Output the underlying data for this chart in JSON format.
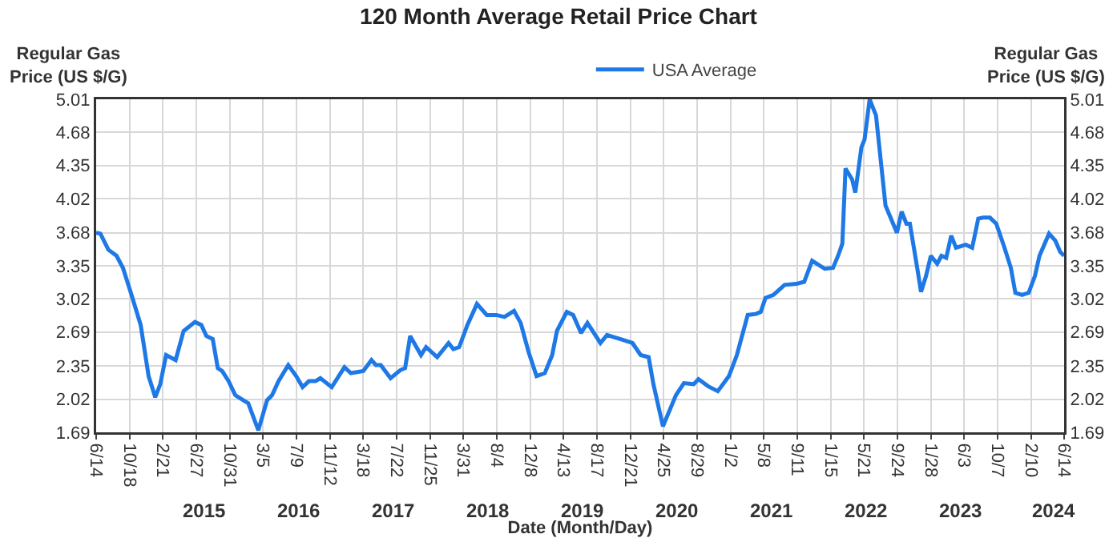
{
  "chart_data": {
    "type": "line",
    "title": "120 Month Average Retail Price Chart",
    "xlabel": "Date (Month/Day)",
    "ylabel": "Regular Gas\nPrice (US $/G)",
    "y2label": "Regular Gas\nPrice (US $/G)",
    "x": [
      "2014-06-14",
      "2014-06-30",
      "2014-07-30",
      "2014-08-30",
      "2014-09-23",
      "2014-10-23",
      "2014-11-29",
      "2014-12-29",
      "2015-01-23",
      "2015-02-11",
      "2015-03-05",
      "2015-04-10",
      "2015-05-10",
      "2015-06-22",
      "2015-07-16",
      "2015-08-04",
      "2015-08-28",
      "2015-09-16",
      "2015-10-03",
      "2015-10-27",
      "2015-11-21",
      "2015-12-21",
      "2016-01-09",
      "2016-02-16",
      "2016-03-20",
      "2016-04-08",
      "2016-05-02",
      "2016-06-08",
      "2016-07-08",
      "2016-08-01",
      "2016-08-25",
      "2016-09-19",
      "2016-10-07",
      "2016-11-19",
      "2017-01-06",
      "2017-01-30",
      "2017-03-18",
      "2017-04-18",
      "2017-05-05",
      "2017-05-23",
      "2017-06-29",
      "2017-08-05",
      "2017-08-23",
      "2017-09-11",
      "2017-10-22",
      "2017-11-10",
      "2017-12-22",
      "2018-02-03",
      "2018-02-21",
      "2018-03-15",
      "2018-04-15",
      "2018-05-21",
      "2018-06-27",
      "2018-08-02",
      "2018-09-02",
      "2018-10-08",
      "2018-11-02",
      "2018-12-02",
      "2019-01-01",
      "2019-02-01",
      "2019-03-01",
      "2019-03-19",
      "2019-04-25",
      "2019-05-19",
      "2019-06-18",
      "2019-07-12",
      "2019-08-30",
      "2019-09-24",
      "2019-11-12",
      "2019-12-29",
      "2020-01-29",
      "2020-02-28",
      "2020-03-17",
      "2020-04-22",
      "2020-06-10",
      "2020-07-10",
      "2020-08-16",
      "2020-09-03",
      "2020-10-09",
      "2020-11-15",
      "2020-12-27",
      "2021-01-26",
      "2021-03-08",
      "2021-04-08",
      "2021-04-26",
      "2021-05-14",
      "2021-06-13",
      "2021-07-25",
      "2021-09-07",
      "2021-10-07",
      "2021-11-06",
      "2021-12-24",
      "2022-01-24",
      "2022-02-12",
      "2022-02-28",
      "2022-03-12",
      "2022-04-06",
      "2022-04-18",
      "2022-05-11",
      "2022-05-23",
      "2022-06-11",
      "2022-07-05",
      "2022-08-10",
      "2022-09-22",
      "2022-10-10",
      "2022-10-28",
      "2022-11-10",
      "2022-12-10",
      "2022-12-22",
      "2023-01-10",
      "2023-01-28",
      "2023-02-21",
      "2023-03-09",
      "2023-03-27",
      "2023-04-15",
      "2023-05-03",
      "2023-06-09",
      "2023-07-03",
      "2023-07-26",
      "2023-08-14",
      "2023-09-08",
      "2023-10-02",
      "2023-11-02",
      "2023-11-26",
      "2023-12-13",
      "2024-01-07",
      "2024-02-01",
      "2024-02-25",
      "2024-03-13",
      "2024-04-18",
      "2024-05-12",
      "2024-05-30",
      "2024-06-14"
    ],
    "series": [
      {
        "name": "USA Average",
        "color": "#1e78e6",
        "values": [
          3.68,
          3.67,
          3.51,
          3.45,
          3.33,
          3.08,
          2.76,
          2.25,
          2.04,
          2.17,
          2.46,
          2.41,
          2.7,
          2.79,
          2.76,
          2.65,
          2.62,
          2.33,
          2.3,
          2.2,
          2.06,
          2.01,
          1.98,
          1.71,
          2.01,
          2.06,
          2.2,
          2.36,
          2.25,
          2.14,
          2.2,
          2.2,
          2.23,
          2.14,
          2.34,
          2.28,
          2.3,
          2.41,
          2.36,
          2.36,
          2.23,
          2.31,
          2.33,
          2.65,
          2.46,
          2.54,
          2.44,
          2.58,
          2.52,
          2.54,
          2.76,
          2.97,
          2.86,
          2.86,
          2.84,
          2.9,
          2.78,
          2.49,
          2.25,
          2.28,
          2.46,
          2.7,
          2.89,
          2.86,
          2.68,
          2.78,
          2.58,
          2.66,
          2.62,
          2.58,
          2.46,
          2.44,
          2.17,
          1.75,
          2.06,
          2.18,
          2.17,
          2.22,
          2.15,
          2.1,
          2.25,
          2.46,
          2.86,
          2.87,
          2.89,
          3.03,
          3.06,
          3.16,
          3.17,
          3.19,
          3.4,
          3.32,
          3.33,
          3.45,
          3.57,
          4.32,
          4.21,
          4.08,
          4.53,
          4.61,
          5.01,
          4.85,
          3.95,
          3.68,
          3.89,
          3.77,
          3.77,
          3.29,
          3.09,
          3.25,
          3.45,
          3.37,
          3.45,
          3.43,
          3.65,
          3.53,
          3.56,
          3.53,
          3.82,
          3.83,
          3.83,
          3.77,
          3.53,
          3.33,
          3.08,
          3.06,
          3.08,
          3.25,
          3.45,
          3.67,
          3.6,
          3.49,
          3.45
        ]
      }
    ],
    "xlim": [
      "2014-06-14",
      "2024-06-14"
    ],
    "xticks": [
      {
        "value": "2014-06-14",
        "label": "6/14"
      },
      {
        "value": "2014-10-18",
        "label": "10/18"
      },
      {
        "value": "2015-02-21",
        "label": "2/21"
      },
      {
        "value": "2015-06-27",
        "label": "6/27"
      },
      {
        "value": "2015-10-31",
        "label": "10/31"
      },
      {
        "value": "2016-03-05",
        "label": "3/5"
      },
      {
        "value": "2016-07-09",
        "label": "7/9"
      },
      {
        "value": "2016-11-12",
        "label": "11/12"
      },
      {
        "value": "2017-03-18",
        "label": "3/18"
      },
      {
        "value": "2017-07-22",
        "label": "7/22"
      },
      {
        "value": "2017-11-25",
        "label": "11/25"
      },
      {
        "value": "2018-03-31",
        "label": "3/31"
      },
      {
        "value": "2018-08-04",
        "label": "8/4"
      },
      {
        "value": "2018-12-08",
        "label": "12/8"
      },
      {
        "value": "2019-04-13",
        "label": "4/13"
      },
      {
        "value": "2019-08-17",
        "label": "8/17"
      },
      {
        "value": "2019-12-21",
        "label": "12/21"
      },
      {
        "value": "2020-04-25",
        "label": "4/25"
      },
      {
        "value": "2020-08-29",
        "label": "8/29"
      },
      {
        "value": "2021-01-02",
        "label": "1/2"
      },
      {
        "value": "2021-05-08",
        "label": "5/8"
      },
      {
        "value": "2021-09-11",
        "label": "9/11"
      },
      {
        "value": "2022-01-15",
        "label": "1/15"
      },
      {
        "value": "2022-05-21",
        "label": "5/21"
      },
      {
        "value": "2022-09-24",
        "label": "9/24"
      },
      {
        "value": "2023-01-28",
        "label": "1/28"
      },
      {
        "value": "2023-06-03",
        "label": "6/3"
      },
      {
        "value": "2023-10-07",
        "label": "10/7"
      },
      {
        "value": "2024-02-10",
        "label": "2/10"
      },
      {
        "value": "2024-06-14",
        "label": "6/14"
      }
    ],
    "ylim": [
      1.69,
      5.01
    ],
    "yticks": [
      1.69,
      2.02,
      2.35,
      2.69,
      3.02,
      3.35,
      3.68,
      4.02,
      4.35,
      4.68,
      5.01
    ],
    "y2lim": [
      1.69,
      5.01
    ],
    "y2ticks": [
      1.69,
      2.02,
      2.35,
      2.69,
      3.02,
      3.35,
      3.68,
      4.02,
      4.35,
      4.68,
      5.01
    ],
    "annotations": [
      "2015",
      "2016",
      "2017",
      "2018",
      "2019",
      "2020",
      "2021",
      "2022",
      "2023",
      "2024"
    ],
    "grid": true,
    "legend": "top",
    "marker": "none",
    "line_style": "solid"
  }
}
